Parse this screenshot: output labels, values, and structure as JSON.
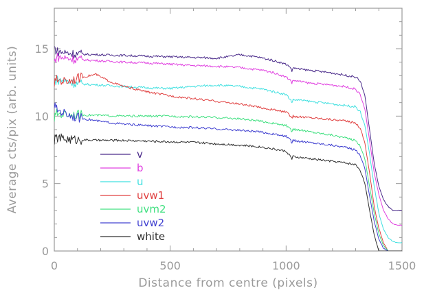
{
  "chart_data": {
    "type": "line",
    "title": "",
    "xlabel": "Distance from centre (pixels)",
    "ylabel": "Average cts/pix (arb. units)",
    "xlim": [
      0,
      1500
    ],
    "ylim": [
      0,
      18
    ],
    "xticks": [
      0,
      500,
      1000,
      1500
    ],
    "yticks": [
      0,
      5,
      10,
      15
    ],
    "xtick_labels": [
      "0",
      "500",
      "1000",
      "1500"
    ],
    "ytick_labels": [
      "0",
      "5",
      "10",
      "15"
    ],
    "grid": false,
    "legend_position": "lower-left",
    "series": [
      {
        "name": "v",
        "color": "#4a2a8a",
        "x": [
          0,
          10,
          50,
          100,
          200,
          300,
          400,
          500,
          600,
          700,
          750,
          800,
          850,
          900,
          950,
          1000,
          1020,
          1025,
          1030,
          1050,
          1100,
          1200,
          1250,
          1300,
          1320,
          1340,
          1360,
          1380,
          1400,
          1420,
          1440,
          1460,
          1480,
          1500
        ],
        "y": [
          15.1,
          14.8,
          14.7,
          14.6,
          14.55,
          14.5,
          14.45,
          14.4,
          14.35,
          14.3,
          14.4,
          14.55,
          14.45,
          14.3,
          14.1,
          13.85,
          13.6,
          13.3,
          13.6,
          13.5,
          13.4,
          13.2,
          13.05,
          12.9,
          12.6,
          11.5,
          9.0,
          6.5,
          4.8,
          3.8,
          3.3,
          3.0,
          3.0,
          3.0
        ]
      },
      {
        "name": "b",
        "color": "#e040e0",
        "x": [
          0,
          10,
          50,
          100,
          200,
          300,
          400,
          500,
          600,
          700,
          800,
          900,
          950,
          1000,
          1020,
          1025,
          1030,
          1050,
          1100,
          1200,
          1250,
          1300,
          1320,
          1340,
          1360,
          1380,
          1400,
          1420,
          1440,
          1460,
          1480,
          1500
        ],
        "y": [
          14.0,
          14.4,
          14.3,
          14.2,
          14.1,
          14.0,
          13.95,
          13.85,
          13.75,
          13.7,
          13.6,
          13.4,
          13.2,
          12.9,
          12.65,
          12.45,
          12.65,
          12.6,
          12.45,
          12.3,
          12.2,
          12.0,
          11.6,
          10.5,
          8.2,
          5.8,
          4.2,
          3.0,
          2.4,
          2.0,
          1.9,
          1.9
        ]
      },
      {
        "name": "u",
        "color": "#40e0e0",
        "x": [
          0,
          10,
          50,
          100,
          200,
          300,
          400,
          500,
          600,
          700,
          800,
          900,
          1000,
          1020,
          1025,
          1030,
          1050,
          1100,
          1200,
          1250,
          1300,
          1320,
          1340,
          1360,
          1380,
          1400,
          1420,
          1440,
          1460,
          1480,
          1500
        ],
        "y": [
          12.5,
          12.7,
          12.6,
          12.4,
          12.3,
          12.2,
          12.1,
          12.05,
          12.2,
          12.3,
          12.2,
          12.0,
          11.6,
          11.2,
          11.0,
          11.2,
          11.2,
          11.1,
          10.9,
          10.8,
          10.7,
          10.3,
          9.3,
          7.2,
          4.8,
          2.8,
          1.6,
          1.0,
          0.7,
          0.6,
          0.6
        ]
      },
      {
        "name": "uvw1",
        "color": "#e04040",
        "x": [
          0,
          10,
          50,
          100,
          150,
          180,
          200,
          250,
          300,
          400,
          500,
          600,
          700,
          800,
          900,
          1000,
          1020,
          1025,
          1030,
          1050,
          1100,
          1200,
          1250,
          1300,
          1320,
          1340,
          1360,
          1380,
          1400,
          1420,
          1440,
          1460,
          1480,
          1500
        ],
        "y": [
          12.4,
          12.7,
          12.6,
          12.8,
          13.0,
          13.1,
          12.9,
          12.5,
          12.2,
          11.8,
          11.5,
          11.3,
          11.1,
          10.9,
          10.6,
          10.3,
          10.0,
          9.8,
          10.0,
          9.95,
          9.9,
          9.75,
          9.65,
          9.5,
          9.1,
          8.0,
          5.8,
          3.3,
          1.7,
          0.6,
          0.0,
          0.0,
          0.0,
          0.0
        ]
      },
      {
        "name": "uvm2",
        "color": "#40e080",
        "x": [
          0,
          10,
          50,
          100,
          200,
          300,
          400,
          500,
          600,
          700,
          800,
          900,
          1000,
          1020,
          1025,
          1030,
          1050,
          1100,
          1200,
          1250,
          1300,
          1320,
          1340,
          1360,
          1380,
          1400,
          1420,
          1440,
          1460,
          1480,
          1500
        ],
        "y": [
          9.8,
          10.2,
          10.15,
          10.1,
          10.05,
          10.0,
          10.0,
          10.0,
          9.95,
          9.9,
          9.8,
          9.6,
          9.3,
          9.0,
          8.85,
          9.0,
          9.0,
          8.85,
          8.6,
          8.4,
          8.2,
          7.8,
          6.8,
          4.8,
          2.8,
          1.3,
          0.4,
          0.0,
          0.0,
          0.0,
          0.0
        ]
      },
      {
        "name": "uvw2",
        "color": "#4040d0",
        "x": [
          0,
          10,
          50,
          100,
          200,
          300,
          400,
          500,
          600,
          700,
          800,
          900,
          1000,
          1020,
          1025,
          1030,
          1050,
          1100,
          1200,
          1250,
          1300,
          1320,
          1340,
          1360,
          1380,
          1400,
          1420,
          1440,
          1460,
          1480,
          1500
        ],
        "y": [
          10.8,
          10.5,
          10.2,
          9.9,
          9.6,
          9.4,
          9.3,
          9.2,
          9.15,
          9.05,
          8.95,
          8.8,
          8.5,
          8.2,
          8.0,
          8.2,
          8.15,
          8.05,
          7.85,
          7.7,
          7.5,
          7.1,
          6.1,
          4.1,
          2.2,
          0.9,
          0.2,
          0.0,
          0.0,
          0.0,
          0.0
        ]
      },
      {
        "name": "white",
        "color": "#303030",
        "x": [
          0,
          10,
          50,
          100,
          200,
          300,
          400,
          500,
          600,
          700,
          800,
          900,
          1000,
          1020,
          1025,
          1030,
          1050,
          1100,
          1200,
          1250,
          1300,
          1320,
          1340,
          1360,
          1380,
          1400,
          1420,
          1440,
          1460,
          1480,
          1500
        ],
        "y": [
          8.2,
          8.4,
          8.3,
          8.25,
          8.2,
          8.2,
          8.15,
          8.1,
          8.05,
          7.95,
          7.85,
          7.7,
          7.4,
          7.0,
          6.8,
          7.0,
          6.95,
          6.85,
          6.65,
          6.55,
          6.4,
          6.0,
          5.0,
          3.0,
          1.2,
          0.0,
          0.0,
          0.0,
          0.0,
          0.0,
          0.0
        ]
      }
    ]
  }
}
